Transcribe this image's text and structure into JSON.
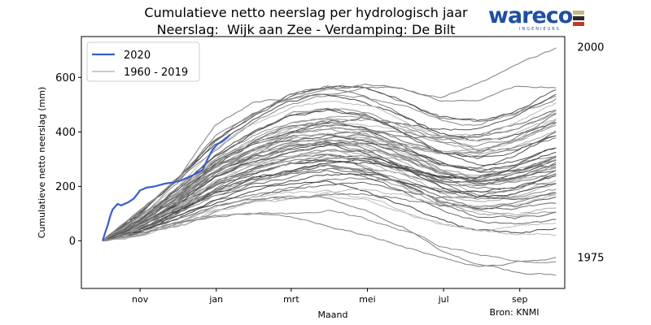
{
  "title_line1": "Cumulatieve netto neerslag per hydrologisch jaar",
  "title_line2": "Neerslag:  Wijk aan Zee - Verdamping: De Bilt",
  "logo": {
    "word": "wareco",
    "sub": "INGENIEURS",
    "colors": [
      "#c9b58a",
      "#2a2a2a",
      "#c0392b"
    ]
  },
  "source_note": "Bron: KNMI",
  "chart_data": {
    "type": "line",
    "xlabel": "Maand",
    "ylabel": "Cumulatieve netto neerslag (mm)",
    "x_ticks": [
      "nov",
      "jan",
      "mrt",
      "mei",
      "jul",
      "sep"
    ],
    "x_tick_positions_days": [
      30,
      91,
      151,
      212,
      273,
      334
    ],
    "y_ticks": [
      0,
      200,
      400,
      600
    ],
    "xlim_days": [
      -17,
      370
    ],
    "ylim": [
      -175,
      750
    ],
    "grid": false,
    "legend_position": "top-left",
    "legend": [
      {
        "label": "2020",
        "color": "#3a5fc9"
      },
      {
        "label": "1960 - 2019",
        "color": "#aaaaaa"
      }
    ],
    "annotations": [
      {
        "text": "2000",
        "x_day": 380,
        "y": 712
      },
      {
        "text": "1975",
        "x_day": 380,
        "y": -60
      }
    ],
    "series_2020": {
      "name": "2020",
      "color": "#3a5fc9",
      "x_days": [
        0,
        2,
        4,
        6,
        8,
        10,
        12,
        15,
        20,
        25,
        30,
        35,
        42,
        50,
        57,
        62,
        67,
        72,
        76,
        80,
        84,
        88,
        92,
        96,
        100,
        102
      ],
      "y": [
        0,
        30,
        55,
        90,
        115,
        125,
        135,
        130,
        140,
        155,
        185,
        195,
        200,
        210,
        215,
        220,
        230,
        240,
        250,
        260,
        300,
        335,
        355,
        365,
        380,
        390
      ]
    },
    "historic_series": {
      "name": "1960 - 2019",
      "count": 60,
      "x_days": [
        0,
        30,
        60,
        90,
        120,
        150,
        180,
        210,
        240,
        270,
        300,
        330,
        365
      ],
      "median_y": [
        0,
        60,
        140,
        230,
        290,
        330,
        350,
        340,
        300,
        250,
        230,
        250,
        300
      ],
      "highlight": [
        {
          "year": "2000",
          "y": [
            0,
            100,
            220,
            380,
            460,
            520,
            560,
            580,
            560,
            530,
            580,
            640,
            705
          ]
        },
        {
          "year": "1975",
          "y": [
            0,
            40,
            70,
            90,
            100,
            90,
            60,
            30,
            -10,
            -50,
            -90,
            -75,
            -65
          ]
        },
        {
          "year": "wet-summer",
          "y": [
            0,
            120,
            230,
            420,
            500,
            520,
            540,
            560,
            560,
            520,
            520,
            560,
            560
          ]
        },
        {
          "year": "dry-late",
          "y": [
            0,
            20,
            60,
            130,
            150,
            170,
            160,
            120,
            60,
            -20,
            -80,
            -110,
            -130
          ]
        }
      ]
    }
  }
}
